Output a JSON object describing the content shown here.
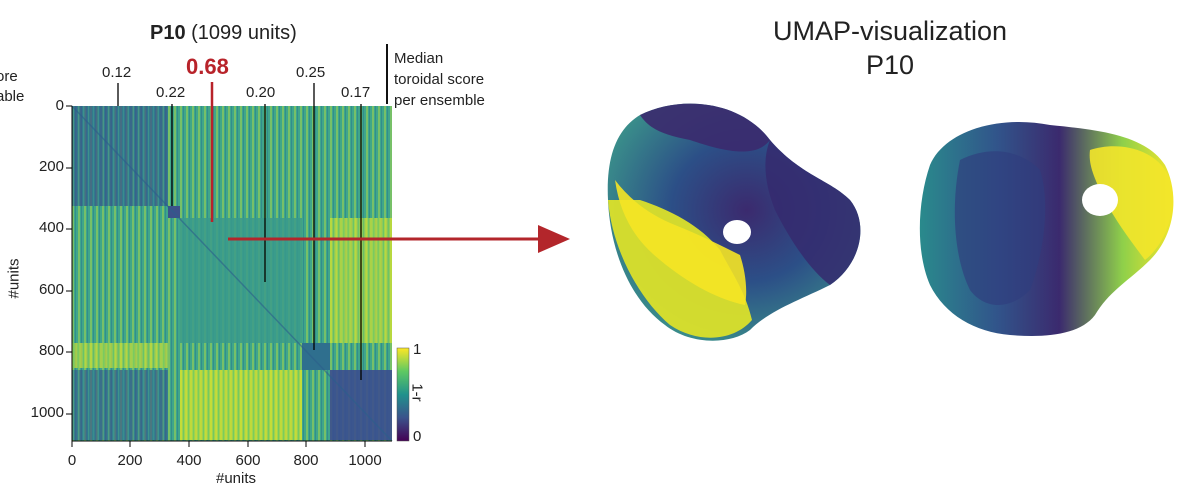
{
  "left_panel": {
    "title_bold": "P10",
    "title_rest": " (1099 units)",
    "partial_text": [
      "ore",
      "able"
    ],
    "side_label": [
      "Median",
      "toroidal score",
      "per ensemble"
    ],
    "ensemble_scores": [
      "0.12",
      "0.22",
      "0.68",
      "0.20",
      "0.25",
      "0.17"
    ],
    "y_axis_label": "#units",
    "x_axis_label": "#units",
    "y_ticks": [
      "0",
      "200",
      "400",
      "600",
      "800",
      "1000"
    ],
    "x_ticks": [
      "0",
      "200",
      "400",
      "600",
      "800",
      "1000"
    ],
    "colorbar": {
      "label": "1-r",
      "max": "1",
      "min": "0"
    }
  },
  "right_panel": {
    "title_line1": "UMAP-visualization",
    "title_line2": "P10"
  },
  "colors": {
    "highlight_red": "#b8232a",
    "arrow": "#b3262b",
    "viridis_dark": "#440154",
    "viridis_mid": "#21918c",
    "viridis_light": "#fde725"
  },
  "chart_data": {
    "type": "heatmap",
    "title": "P10 (1099 units)",
    "xlabel": "#units",
    "ylabel": "#units",
    "xlim": [
      0,
      1099
    ],
    "ylim": [
      0,
      1099
    ],
    "colorbar_label": "1-r",
    "colorbar_range": [
      0,
      1
    ],
    "ensemble_boundaries": [
      0,
      330,
      370,
      780,
      850,
      940,
      1099
    ],
    "median_toroidal_scores": [
      0.12,
      0.22,
      0.68,
      0.2,
      0.25,
      0.17
    ]
  }
}
